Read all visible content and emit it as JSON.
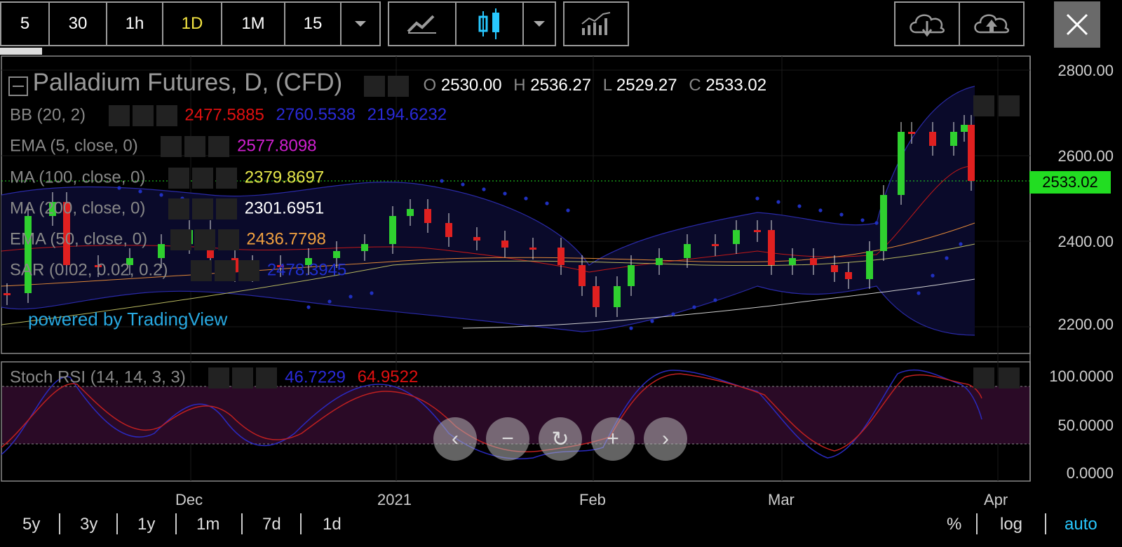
{
  "toolbar": {
    "intervals": [
      "5",
      "30",
      "1h",
      "1D",
      "1M",
      "15"
    ],
    "active_interval": "1D",
    "buttons": [
      "line-chart",
      "candles",
      "indicators",
      "download",
      "upload",
      "close"
    ]
  },
  "chart": {
    "title": "Palladium Futures, D, (CFD)",
    "ohlc": {
      "o_label": "O",
      "o": "2530.00",
      "h_label": "H",
      "h": "2536.27",
      "l_label": "L",
      "l": "2529.27",
      "c_label": "C",
      "c": "2533.02"
    },
    "indicators": [
      {
        "name": "BB (20, 2)",
        "values": [
          "2477.5885",
          "2760.5538",
          "2194.6232"
        ],
        "colors": [
          "#e01010",
          "#1a1ad0",
          "#1a1ad0"
        ]
      },
      {
        "name": "EMA (5, close, 0)",
        "values": [
          "2577.8098"
        ],
        "colors": [
          "#d020d0"
        ]
      },
      {
        "name": "MA (100, close, 0)",
        "values": [
          "2379.8697"
        ],
        "colors": [
          "#e6e64a"
        ]
      },
      {
        "name": "MA (200, close, 0)",
        "values": [
          "2301.6951"
        ],
        "colors": [
          "#ffffff"
        ]
      },
      {
        "name": "EMA (50, close, 0)",
        "values": [
          "2436.7798"
        ],
        "colors": [
          "#f0a040"
        ]
      },
      {
        "name": "SAR (0.02, 0.02, 0.2)",
        "values": [
          "2478.3945"
        ],
        "colors": [
          "#2030d0"
        ]
      }
    ],
    "watermark": "powered by TradingView",
    "price_axis": [
      "2800.00",
      "2600.00",
      "2400.00",
      "2200.00"
    ],
    "last_price": "2533.02",
    "stoch": {
      "name": "Stoch RSI (14, 14, 3, 3)",
      "k": "46.7229",
      "d": "64.9522",
      "axis": [
        "100.0000",
        "50.0000",
        "0.0000"
      ]
    },
    "time_axis": [
      "Dec",
      "2021",
      "Feb",
      "Mar",
      "Apr"
    ]
  },
  "bottom": {
    "ranges": [
      "5y",
      "3y",
      "1y",
      "1m",
      "7d",
      "1d"
    ],
    "right": [
      "%",
      "log",
      "auto"
    ]
  },
  "colors": {
    "up": "#2fd02f",
    "down": "#e02020",
    "accent": "#28c8ff",
    "last_price_bg": "#22dd22"
  }
}
